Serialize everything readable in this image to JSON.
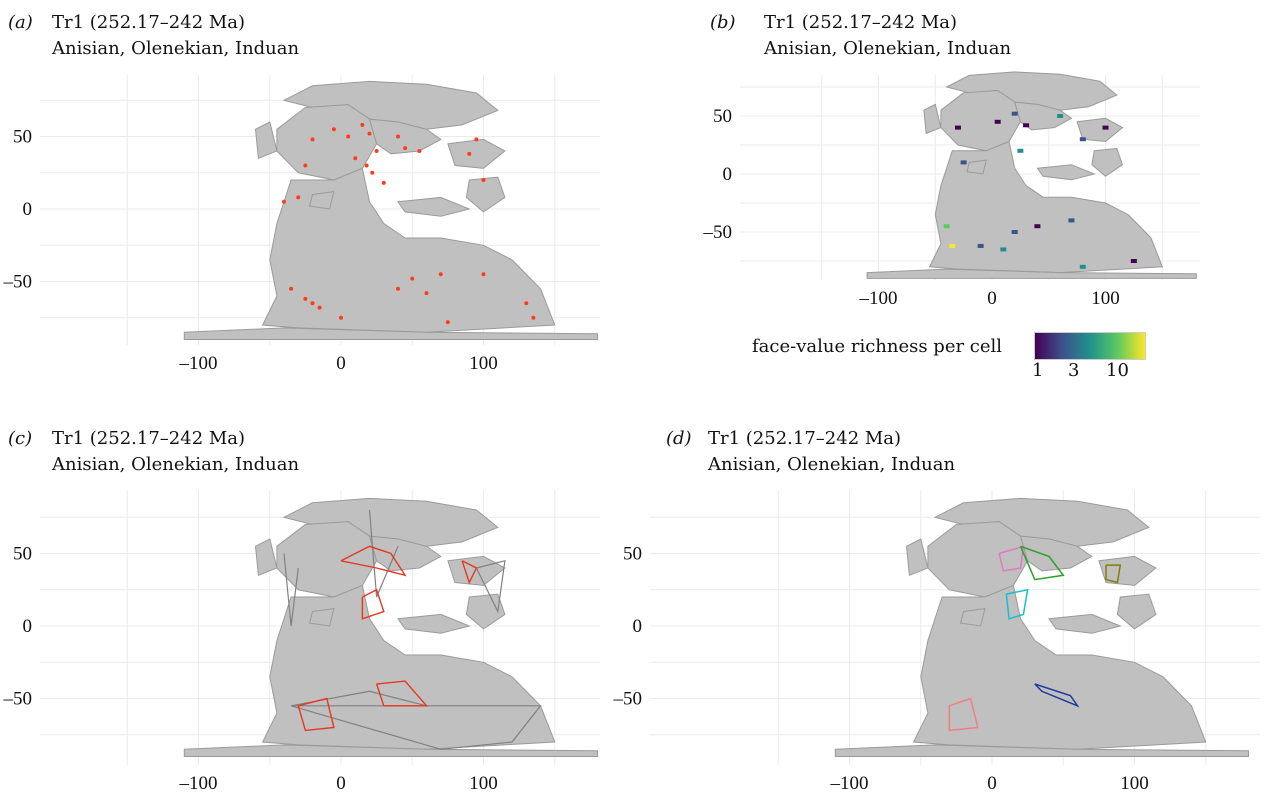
{
  "panels": [
    {
      "letter": "(a)",
      "title": "Tr1 (252.17–242 Ma)",
      "subtitle": "Anisian, Olenekian, Induan",
      "yticks": [
        "50",
        "0",
        "–50"
      ],
      "xticks": [
        "–100",
        "0",
        "100"
      ]
    },
    {
      "letter": "(b)",
      "title": "Tr1 (252.17–242 Ma)",
      "subtitle": "Anisian, Olenekian, Induan",
      "yticks": [
        "50",
        "0",
        "–50"
      ],
      "xticks": [
        "–100",
        "0",
        "100"
      ]
    },
    {
      "letter": "(c)",
      "title": "Tr1 (252.17–242 Ma)",
      "subtitle": "Anisian, Olenekian, Induan",
      "yticks": [
        "50",
        "0",
        "–50"
      ],
      "xticks": [
        "–100",
        "0",
        "100"
      ]
    },
    {
      "letter": "(d)",
      "title": "Tr1 (252.17–242 Ma)",
      "subtitle": "Anisian, Olenekian, Induan",
      "yticks": [
        "50",
        "0",
        "–50"
      ],
      "xticks": [
        "–100",
        "0",
        "100"
      ]
    }
  ],
  "legend": {
    "title": "face-value richness per cell",
    "labels": [
      "1",
      "3",
      "10"
    ],
    "colors": [
      "#440154",
      "#3b528b",
      "#21908d",
      "#5dc962",
      "#fde725"
    ]
  },
  "colors": {
    "land": "#c0c0c0",
    "land_edge": "#9a9a9a",
    "grid": "#ebebeb",
    "occurrence": "#ff3b1f",
    "network_red": "#e8361f",
    "network_grey": "#808080",
    "cluster_pink": "#e377c2",
    "cluster_green": "#2ca02c",
    "cluster_cyan": "#17becf",
    "cluster_olive": "#808000",
    "cluster_blue": "#1f3b9b",
    "cluster_salmon": "#f08080"
  },
  "map_extent": {
    "lon": [
      -180,
      180
    ],
    "lat": [
      -90,
      90
    ]
  }
}
